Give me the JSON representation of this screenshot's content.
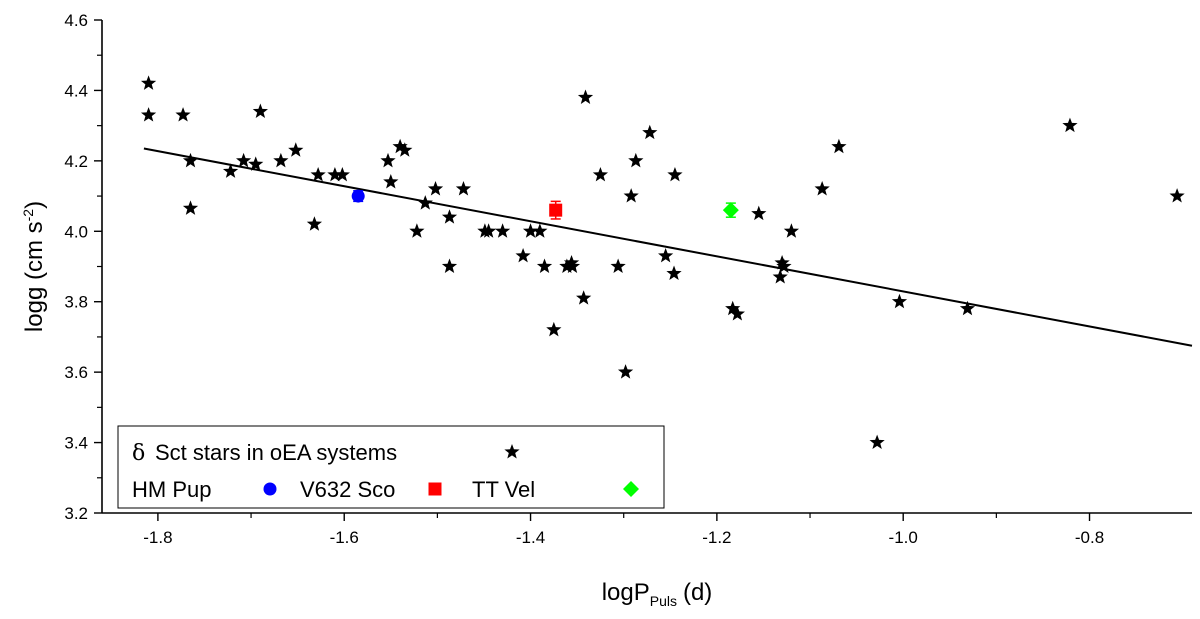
{
  "chart_data": {
    "type": "scatter",
    "xlabel": {
      "main": "logP",
      "sub": "Puls",
      "unit": "(d)"
    },
    "ylabel": {
      "main": "logg (cm s",
      "sup": "-2",
      "close": ")"
    },
    "xlim": [
      -1.86,
      -0.69
    ],
    "ylim": [
      3.2,
      4.6
    ],
    "xticks": [
      -1.8,
      -1.6,
      -1.4,
      -1.2,
      -1.0,
      -0.8
    ],
    "xtick_labels": [
      "-1.8",
      "-1.6",
      "-1.4",
      "-1.2",
      "-1.0",
      "-0.8"
    ],
    "yticks": [
      3.2,
      3.4,
      3.6,
      3.8,
      4.0,
      4.2,
      4.4,
      4.6
    ],
    "ytick_labels": [
      "3.2",
      "3.4",
      "3.6",
      "3.8",
      "4.0",
      "4.2",
      "4.4",
      "4.6"
    ],
    "grid": false,
    "legend": {
      "placement": "bottom-left",
      "row1": {
        "label_symbol": "δ",
        "label": "Sct stars in oEA systems"
      },
      "row2": [
        {
          "label": "HM Pup"
        },
        {
          "label": "V632 Sco"
        },
        {
          "label": "TT Vel"
        }
      ]
    },
    "series": [
      {
        "name": "δ Sct stars in oEA systems",
        "marker": "star",
        "color": "#000000",
        "points": [
          [
            -1.81,
            4.42
          ],
          [
            -1.81,
            4.33
          ],
          [
            -1.773,
            4.33
          ],
          [
            -1.765,
            4.2
          ],
          [
            -1.765,
            4.065
          ],
          [
            -1.722,
            4.17
          ],
          [
            -1.708,
            4.2
          ],
          [
            -1.695,
            4.19
          ],
          [
            -1.69,
            4.34
          ],
          [
            -1.668,
            4.2
          ],
          [
            -1.652,
            4.23
          ],
          [
            -1.628,
            4.16
          ],
          [
            -1.632,
            4.02
          ],
          [
            -1.61,
            4.16
          ],
          [
            -1.602,
            4.16
          ],
          [
            -1.553,
            4.2
          ],
          [
            -1.55,
            4.14
          ],
          [
            -1.54,
            4.24
          ],
          [
            -1.535,
            4.23
          ],
          [
            -1.522,
            4.0
          ],
          [
            -1.513,
            4.08
          ],
          [
            -1.502,
            4.12
          ],
          [
            -1.487,
            4.04
          ],
          [
            -1.487,
            3.9
          ],
          [
            -1.472,
            4.12
          ],
          [
            -1.449,
            4.0
          ],
          [
            -1.445,
            4.0
          ],
          [
            -1.43,
            4.0
          ],
          [
            -1.408,
            3.93
          ],
          [
            -1.4,
            4.0
          ],
          [
            -1.39,
            4.0
          ],
          [
            -1.385,
            3.9
          ],
          [
            -1.375,
            3.72
          ],
          [
            -1.361,
            3.9
          ],
          [
            -1.356,
            3.91
          ],
          [
            -1.355,
            3.9
          ],
          [
            -1.343,
            3.81
          ],
          [
            -1.341,
            4.38
          ],
          [
            -1.325,
            4.16
          ],
          [
            -1.306,
            3.9
          ],
          [
            -1.298,
            3.6
          ],
          [
            -1.292,
            4.1
          ],
          [
            -1.287,
            4.2
          ],
          [
            -1.272,
            4.28
          ],
          [
            -1.255,
            3.93
          ],
          [
            -1.245,
            4.16
          ],
          [
            -1.246,
            3.88
          ],
          [
            -1.183,
            3.78
          ],
          [
            -1.178,
            3.765
          ],
          [
            -1.155,
            4.05
          ],
          [
            -1.132,
            3.87
          ],
          [
            -1.13,
            3.91
          ],
          [
            -1.128,
            3.9
          ],
          [
            -1.12,
            4.0
          ],
          [
            -1.087,
            4.12
          ],
          [
            -1.069,
            4.24
          ],
          [
            -1.028,
            3.4
          ],
          [
            -1.004,
            3.8
          ],
          [
            -0.931,
            3.78
          ],
          [
            -0.821,
            4.3
          ],
          [
            -0.706,
            4.1
          ]
        ]
      },
      {
        "name": "HM Pup",
        "marker": "circle",
        "color": "#0000ff",
        "points": [
          [
            -1.585,
            4.1
          ]
        ],
        "yerr": 0.015
      },
      {
        "name": "V632 Sco",
        "marker": "square",
        "color": "#ff0000",
        "points": [
          [
            -1.373,
            4.06
          ]
        ],
        "yerr": 0.025
      },
      {
        "name": "TT Vel",
        "marker": "diamond",
        "color": "#00ff00",
        "points": [
          [
            -1.185,
            4.06
          ]
        ],
        "yerr": 0.02
      }
    ],
    "fit_line": {
      "type": "linear",
      "color": "#000000",
      "points": [
        [
          -1.815,
          4.235
        ],
        [
          -0.69,
          3.675
        ]
      ]
    }
  }
}
